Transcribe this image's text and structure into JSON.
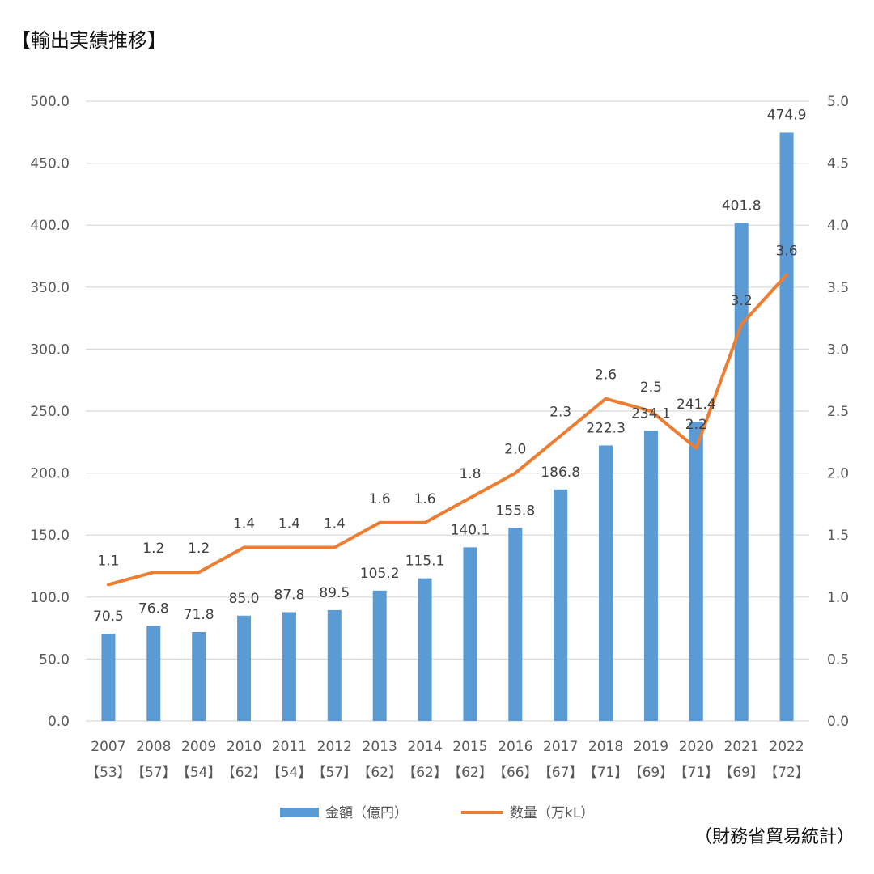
{
  "title": "【輸出実績推移】",
  "source": "（財務省貿易統計）",
  "chart_data": {
    "type": "bar+line",
    "categories": [
      "2007",
      "2008",
      "2009",
      "2010",
      "2011",
      "2012",
      "2013",
      "2014",
      "2015",
      "2016",
      "2017",
      "2018",
      "2019",
      "2020",
      "2021",
      "2022"
    ],
    "category_sublabels": [
      "【53】",
      "【57】",
      "【54】",
      "【62】",
      "【54】",
      "【57】",
      "【62】",
      "【62】",
      "【62】",
      "【66】",
      "【67】",
      "【71】",
      "【69】",
      "【71】",
      "【69】",
      "【72】"
    ],
    "series": [
      {
        "name": "金額（億円）",
        "type": "bar",
        "axis": "left",
        "color": "#5b9bd5",
        "values": [
          70.5,
          76.8,
          71.8,
          85.0,
          87.8,
          89.5,
          105.2,
          115.1,
          140.1,
          155.8,
          186.8,
          222.3,
          234.1,
          241.4,
          401.8,
          474.9
        ]
      },
      {
        "name": "数量（万kL）",
        "type": "line",
        "axis": "right",
        "color": "#ed7d31",
        "values": [
          1.1,
          1.2,
          1.2,
          1.4,
          1.4,
          1.4,
          1.6,
          1.6,
          1.8,
          2.0,
          2.3,
          2.6,
          2.5,
          2.2,
          3.2,
          3.6
        ]
      }
    ],
    "left_axis": {
      "ylim": [
        0,
        500
      ],
      "ticks": [
        "0.0",
        "50.0",
        "100.0",
        "150.0",
        "200.0",
        "250.0",
        "300.0",
        "350.0",
        "400.0",
        "450.0",
        "500.0"
      ]
    },
    "right_axis": {
      "ylim": [
        0,
        5
      ],
      "ticks": [
        "0.0",
        "0.5",
        "1.0",
        "1.5",
        "2.0",
        "2.5",
        "3.0",
        "3.5",
        "4.0",
        "4.5",
        "5.0"
      ]
    },
    "grid": true,
    "legend_position": "bottom"
  }
}
